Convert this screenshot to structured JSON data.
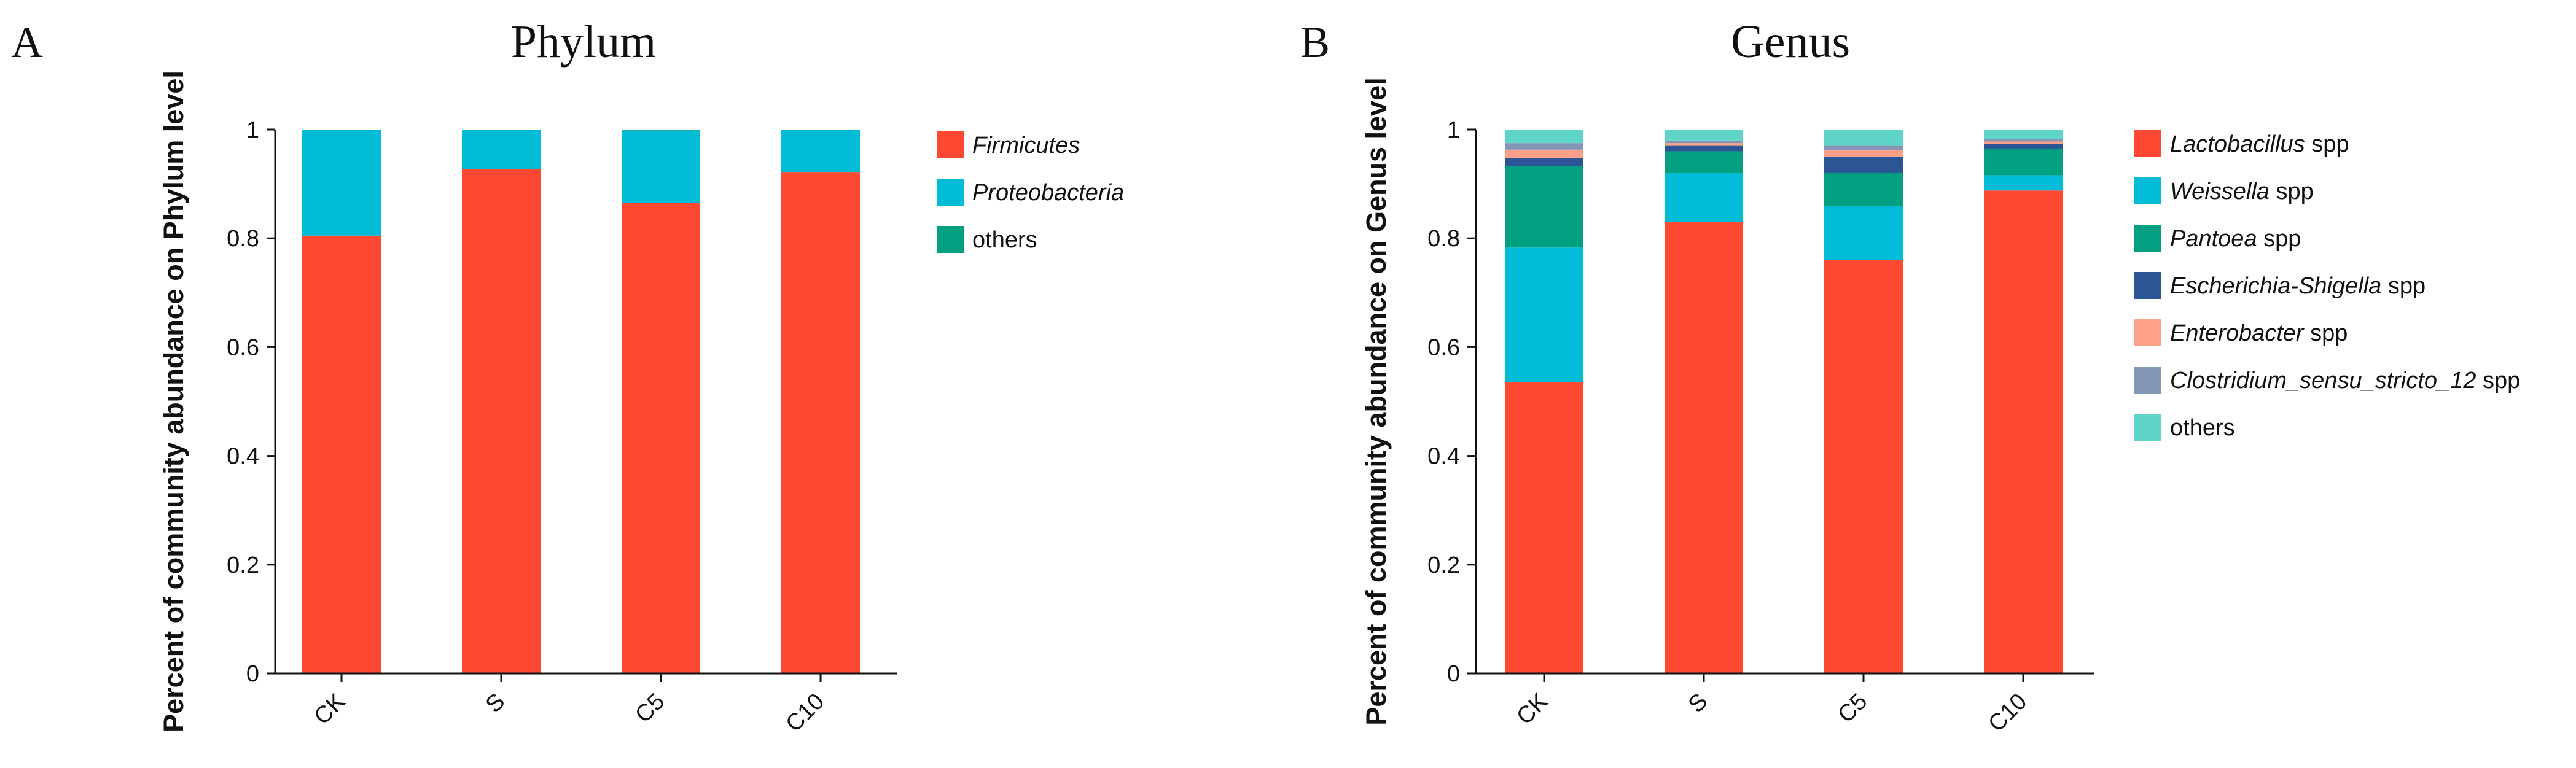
{
  "chart_data": [
    {
      "panel_label": "A",
      "type": "bar",
      "stacked": true,
      "title": "Phylum",
      "ylabel": "Percent of community abundance on Phylum level",
      "xlabel": "",
      "categories": [
        "CK",
        "S",
        "C5",
        "C10"
      ],
      "ylim": [
        0,
        1
      ],
      "yticks": [
        "0",
        "0.2",
        "0.4",
        "0.6",
        "0.8",
        "1"
      ],
      "legend_position": "right",
      "series": [
        {
          "name": "Firmicutes",
          "italic": true,
          "color": "#FF4832",
          "values": [
            0.805,
            0.927,
            0.865,
            0.922
          ]
        },
        {
          "name": "Proteobacteria",
          "italic": true,
          "color": "#00BCD6",
          "values": [
            0.195,
            0.073,
            0.133,
            0.078
          ]
        },
        {
          "name": "others",
          "italic": false,
          "color": "#00A080",
          "values": [
            0.0,
            0.0,
            0.002,
            0.0
          ]
        }
      ]
    },
    {
      "panel_label": "B",
      "type": "bar",
      "stacked": true,
      "title": "Genus",
      "ylabel": "Percent of community abundance on Genus level",
      "xlabel": "",
      "categories": [
        "CK",
        "S",
        "C5",
        "C10"
      ],
      "ylim": [
        0,
        1
      ],
      "yticks": [
        "0",
        "0.2",
        "0.4",
        "0.6",
        "0.8",
        "1"
      ],
      "legend_position": "right",
      "series": [
        {
          "name": "Lactobacillus",
          "suffix": "spp",
          "italic": true,
          "color": "#FF4832",
          "values": [
            0.535,
            0.83,
            0.76,
            0.888
          ]
        },
        {
          "name": "Weissella",
          "suffix": "spp",
          "italic": true,
          "color": "#00BCD6",
          "values": [
            0.248,
            0.09,
            0.1,
            0.028
          ]
        },
        {
          "name": "Pantoea",
          "suffix": "spp",
          "italic": true,
          "color": "#00A080",
          "values": [
            0.15,
            0.04,
            0.06,
            0.048
          ]
        },
        {
          "name": "Escherichia-Shigella",
          "suffix": "spp",
          "italic": true,
          "color": "#2B5594",
          "values": [
            0.015,
            0.01,
            0.03,
            0.01
          ]
        },
        {
          "name": "Enterobacter",
          "suffix": "spp",
          "italic": true,
          "color": "#FFA088",
          "values": [
            0.015,
            0.005,
            0.012,
            0.004
          ]
        },
        {
          "name": "Clostridium_sensu_stricto_12",
          "suffix": "spp",
          "italic": true,
          "color": "#8496B5",
          "values": [
            0.012,
            0.005,
            0.008,
            0.004
          ]
        },
        {
          "name": "others",
          "suffix": "",
          "italic": false,
          "color": "#60D4C8",
          "values": [
            0.025,
            0.02,
            0.03,
            0.018
          ]
        }
      ]
    }
  ]
}
